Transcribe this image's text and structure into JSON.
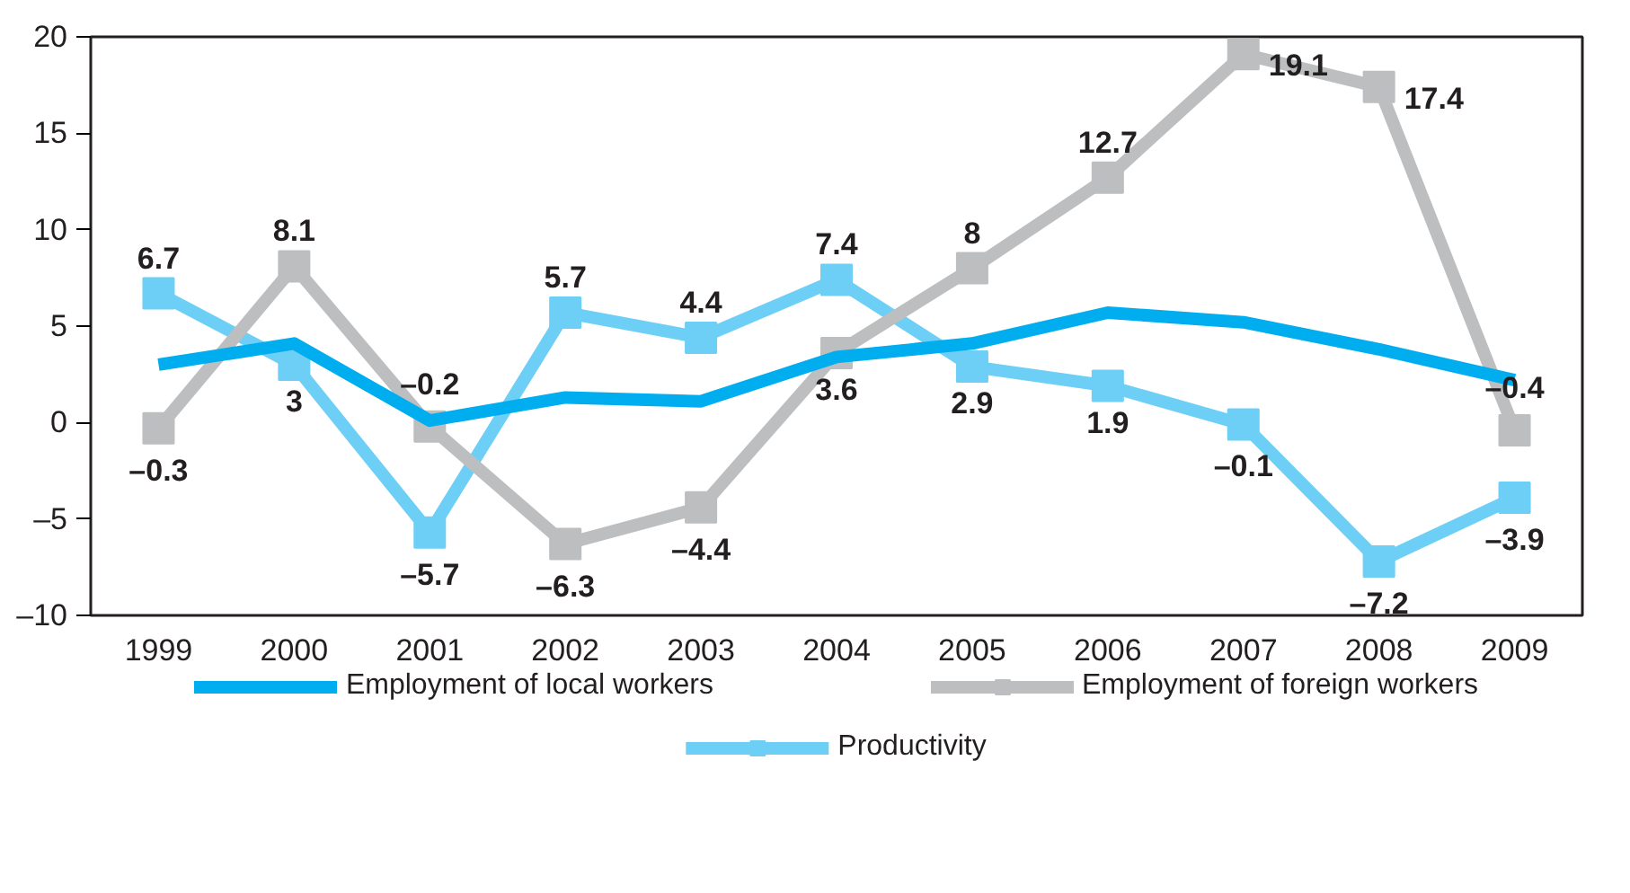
{
  "chart_data": {
    "type": "line",
    "categories": [
      "1999",
      "2000",
      "2001",
      "2002",
      "2003",
      "2004",
      "2005",
      "2006",
      "2007",
      "2008",
      "2009"
    ],
    "series": [
      {
        "name": "Employment of local workers",
        "color": "#00aeef",
        "marker": "none",
        "values": [
          3.0,
          4.1,
          0.1,
          1.3,
          1.1,
          3.4,
          4.1,
          5.7,
          5.2,
          3.8,
          2.2
        ]
      },
      {
        "name": "Employment of foreign workers",
        "color": "#bcbec0",
        "marker": "square",
        "values": [
          -0.3,
          8.1,
          -0.2,
          -6.3,
          -4.4,
          3.6,
          8,
          12.7,
          19.1,
          17.4,
          -0.4
        ],
        "value_labels": [
          "–0.3",
          "8.1",
          "–0.2",
          "–6.3",
          "–4.4",
          "3.6",
          "8",
          "12.7",
          "19.1",
          "17.4",
          "–0.4"
        ]
      },
      {
        "name": "Productivity",
        "color": "#6dcff6",
        "marker": "square",
        "values": [
          6.7,
          3,
          -5.7,
          5.7,
          4.4,
          7.4,
          2.9,
          1.9,
          -0.1,
          -7.2,
          -3.9
        ],
        "value_labels": [
          "6.7",
          "3",
          "–5.7",
          "5.7",
          "4.4",
          "7.4",
          "2.9",
          "1.9",
          "–0.1",
          "–7.2",
          "–3.9"
        ]
      }
    ],
    "ylim": [
      -10,
      20
    ],
    "yticks": [
      {
        "value": -10,
        "label": "–10"
      },
      {
        "value": -5,
        "label": "–5"
      },
      0,
      5,
      10,
      15,
      20
    ],
    "grid": false,
    "legend": "bottom"
  }
}
